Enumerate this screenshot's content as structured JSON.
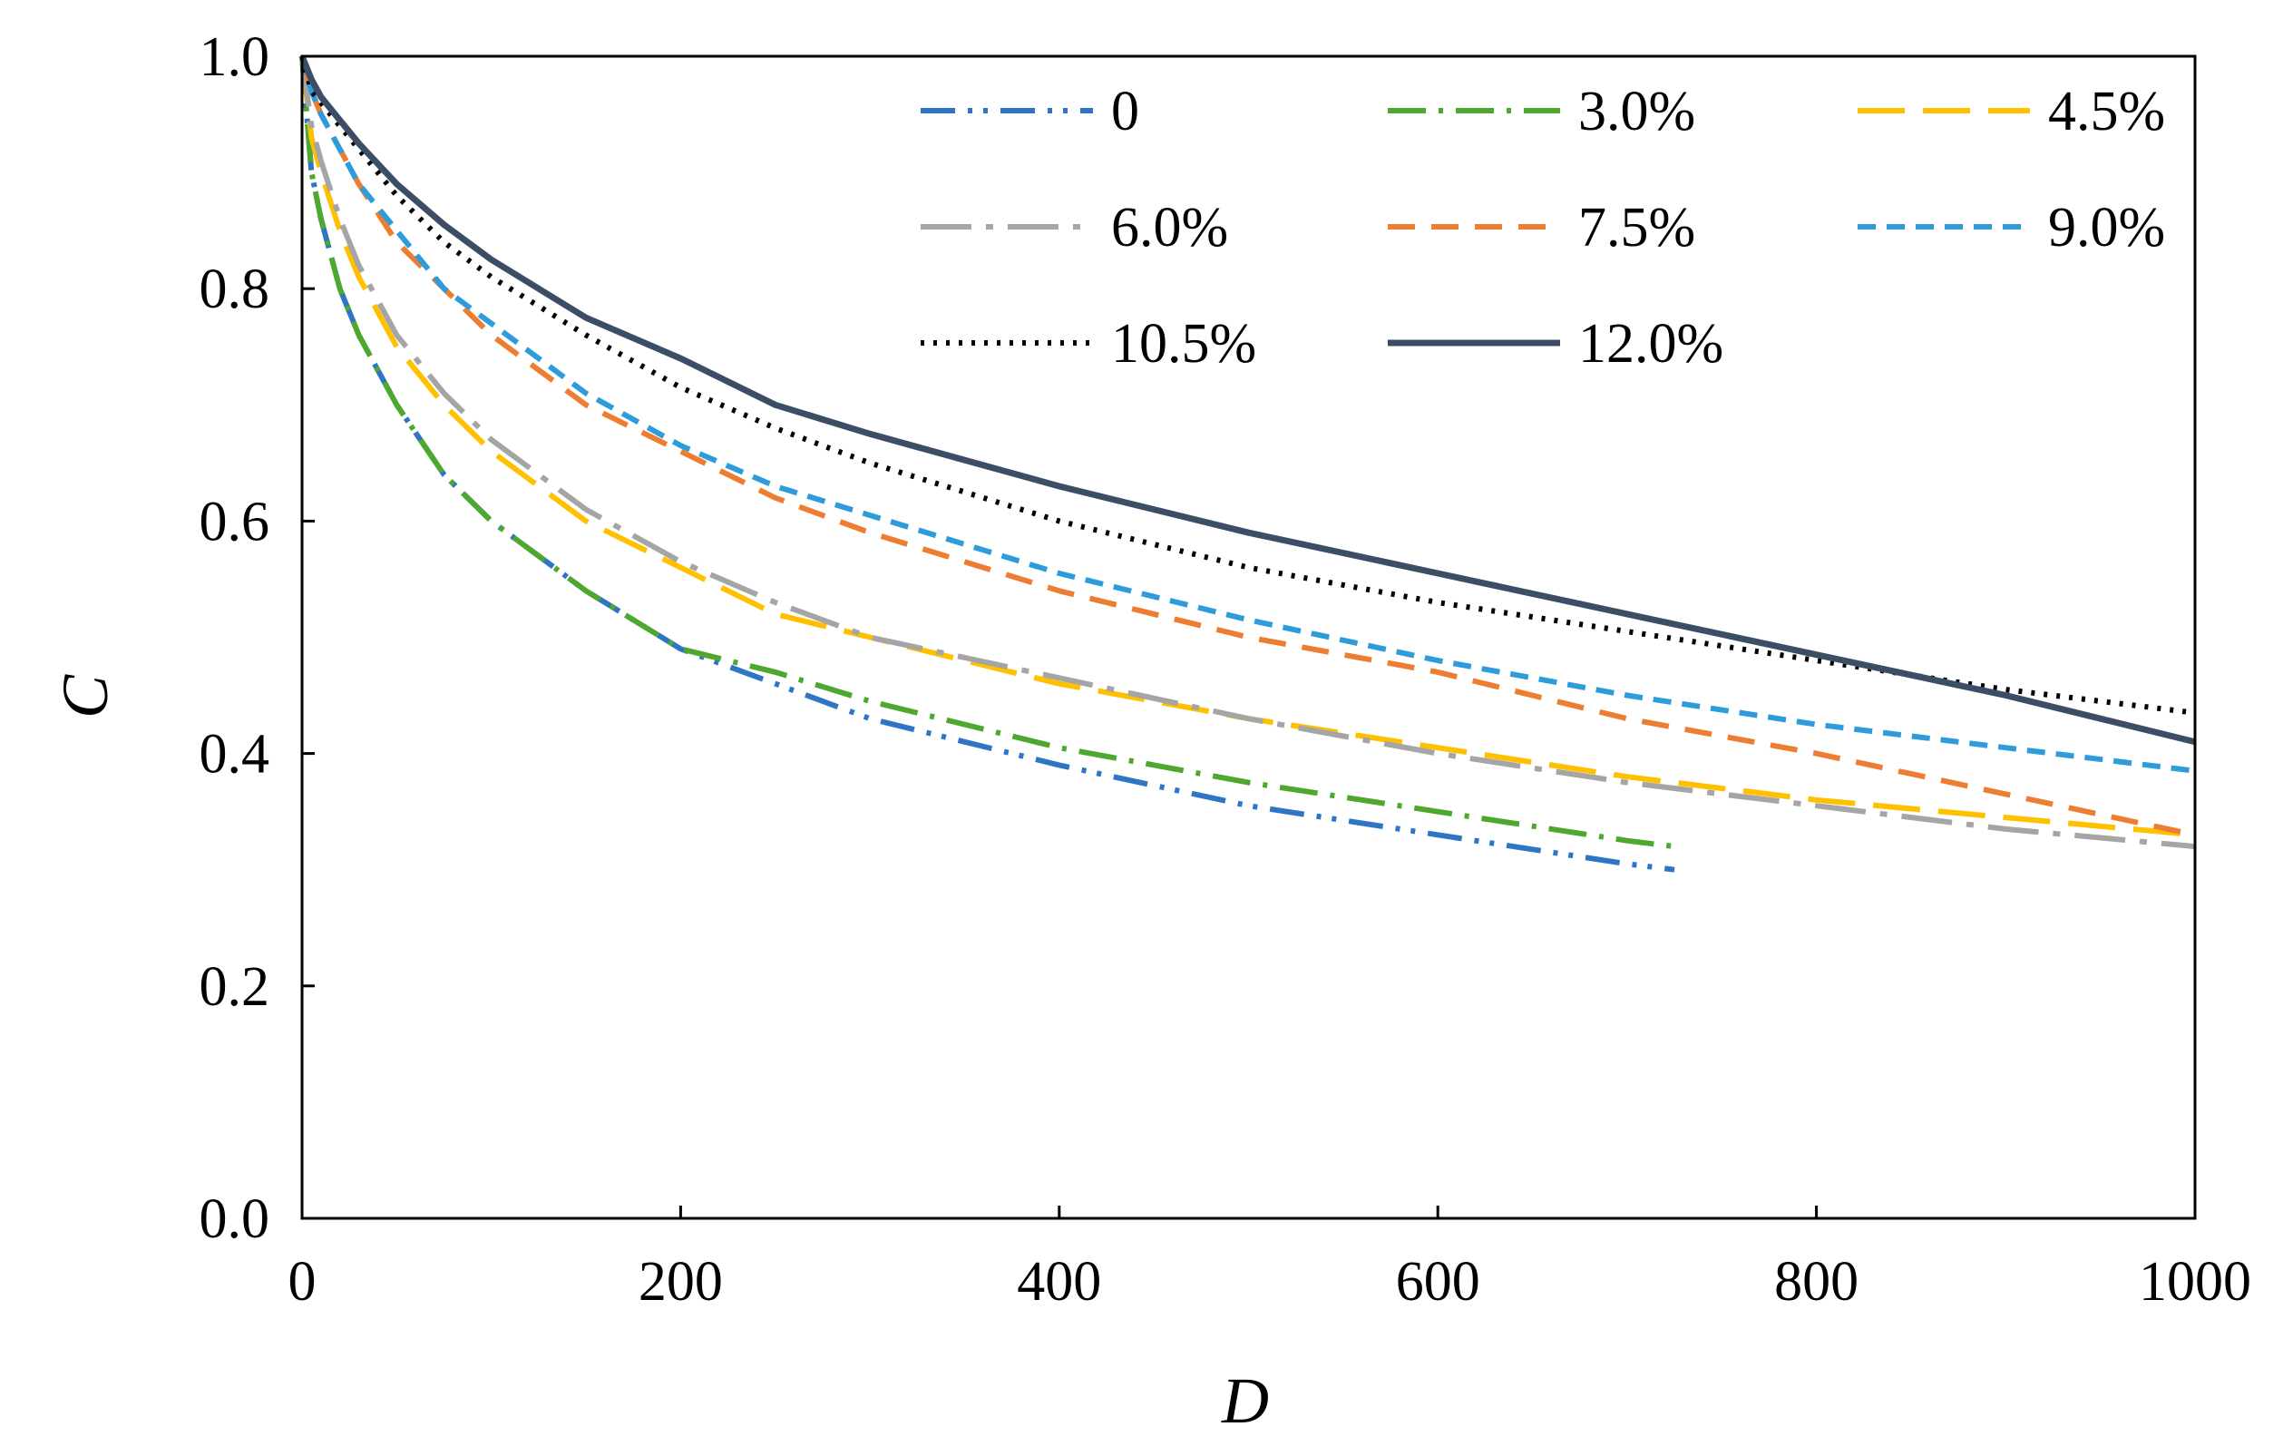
{
  "chart_data": {
    "type": "line",
    "title": "",
    "xlabel": "D",
    "ylabel": "C",
    "xlim": [
      0,
      1000
    ],
    "ylim": [
      0,
      1.0
    ],
    "xticks": [
      "0",
      "200",
      "400",
      "600",
      "800",
      "1000"
    ],
    "yticks": [
      "0.0",
      "0.2",
      "0.4",
      "0.6",
      "0.8",
      "1.0"
    ],
    "grid": false,
    "legend_position": "top-right",
    "series": [
      {
        "name": "0",
        "color": "#2E75C6",
        "style": "dash-dot-dot",
        "x": [
          0,
          5,
          10,
          20,
          30,
          50,
          75,
          100,
          150,
          200,
          250,
          300,
          400,
          500,
          600,
          700,
          725
        ],
        "y": [
          1.0,
          0.9,
          0.86,
          0.8,
          0.76,
          0.7,
          0.64,
          0.6,
          0.54,
          0.49,
          0.46,
          0.43,
          0.39,
          0.355,
          0.33,
          0.305,
          0.3
        ]
      },
      {
        "name": "3.0%",
        "color": "#4EA72E",
        "style": "dash-dot",
        "x": [
          0,
          5,
          10,
          20,
          30,
          50,
          75,
          100,
          150,
          200,
          250,
          300,
          400,
          500,
          600,
          700,
          725
        ],
        "y": [
          1.0,
          0.9,
          0.86,
          0.8,
          0.76,
          0.7,
          0.64,
          0.6,
          0.54,
          0.49,
          0.47,
          0.445,
          0.405,
          0.375,
          0.35,
          0.325,
          0.32
        ]
      },
      {
        "name": "4.5%",
        "color": "#FFC000",
        "style": "long-dash",
        "x": [
          0,
          5,
          10,
          20,
          30,
          50,
          75,
          100,
          150,
          200,
          250,
          300,
          400,
          500,
          600,
          700,
          800,
          900,
          1000
        ],
        "y": [
          1.0,
          0.93,
          0.9,
          0.85,
          0.81,
          0.75,
          0.7,
          0.66,
          0.6,
          0.56,
          0.52,
          0.5,
          0.46,
          0.43,
          0.405,
          0.38,
          0.36,
          0.345,
          0.33
        ]
      },
      {
        "name": "6.0%",
        "color": "#A5A5A5",
        "style": "long-dash-dot",
        "x": [
          0,
          5,
          10,
          20,
          30,
          50,
          75,
          100,
          150,
          200,
          250,
          300,
          400,
          500,
          600,
          700,
          800,
          900,
          1000
        ],
        "y": [
          1.0,
          0.94,
          0.91,
          0.86,
          0.82,
          0.76,
          0.71,
          0.67,
          0.61,
          0.565,
          0.53,
          0.5,
          0.465,
          0.43,
          0.4,
          0.375,
          0.355,
          0.335,
          0.32
        ]
      },
      {
        "name": "7.5%",
        "color": "#ED7D31",
        "style": "dash",
        "x": [
          0,
          5,
          10,
          20,
          30,
          50,
          75,
          100,
          150,
          200,
          250,
          300,
          400,
          500,
          600,
          700,
          800,
          900,
          1000
        ],
        "y": [
          1.0,
          0.97,
          0.95,
          0.92,
          0.89,
          0.84,
          0.8,
          0.76,
          0.7,
          0.66,
          0.62,
          0.59,
          0.54,
          0.5,
          0.47,
          0.43,
          0.4,
          0.365,
          0.33
        ]
      },
      {
        "name": "9.0%",
        "color": "#2E9BDA",
        "style": "short-dash",
        "x": [
          0,
          5,
          10,
          20,
          30,
          50,
          75,
          100,
          150,
          200,
          250,
          300,
          400,
          500,
          600,
          700,
          800,
          900,
          1000
        ],
        "y": [
          1.0,
          0.97,
          0.95,
          0.92,
          0.89,
          0.85,
          0.8,
          0.77,
          0.71,
          0.665,
          0.63,
          0.605,
          0.555,
          0.515,
          0.48,
          0.45,
          0.425,
          0.405,
          0.385
        ]
      },
      {
        "name": "10.5%",
        "color": "#000000",
        "style": "dot",
        "x": [
          0,
          5,
          10,
          20,
          30,
          50,
          75,
          100,
          150,
          200,
          250,
          300,
          400,
          500,
          600,
          700,
          800,
          900,
          1000
        ],
        "y": [
          1.0,
          0.97,
          0.96,
          0.94,
          0.92,
          0.88,
          0.84,
          0.81,
          0.76,
          0.715,
          0.68,
          0.65,
          0.6,
          0.56,
          0.53,
          0.505,
          0.48,
          0.455,
          0.435
        ]
      },
      {
        "name": "12.0%",
        "color": "#3C4E66",
        "style": "solid",
        "x": [
          0,
          5,
          10,
          20,
          30,
          50,
          75,
          100,
          150,
          200,
          250,
          300,
          400,
          500,
          600,
          700,
          800,
          900,
          1000
        ],
        "y": [
          1.0,
          0.98,
          0.965,
          0.945,
          0.925,
          0.89,
          0.855,
          0.825,
          0.775,
          0.74,
          0.7,
          0.675,
          0.63,
          0.59,
          0.555,
          0.52,
          0.485,
          0.45,
          0.41
        ]
      }
    ]
  }
}
